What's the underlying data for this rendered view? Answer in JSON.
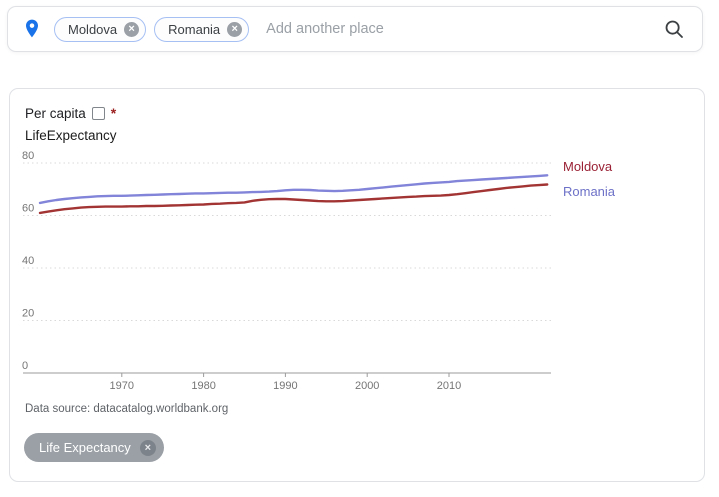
{
  "search_bar": {
    "placeholder": "Add another place",
    "place_chips": [
      {
        "label": "Moldova"
      },
      {
        "label": "Romania"
      }
    ],
    "accent_color": "#1a73e8"
  },
  "panel": {
    "per_capita_label": "Per capita",
    "required_marker": "*",
    "data_source": "Data source: datacatalog.worldbank.org",
    "metric_chip": {
      "label": "Life Expectancy"
    }
  },
  "chart_data": {
    "type": "line",
    "title": "LifeExpectancy",
    "xlabel": "",
    "ylabel": "",
    "ylim": [
      0,
      80
    ],
    "yticks": [
      0,
      20,
      40,
      60,
      80
    ],
    "xticks": [
      1970,
      1980,
      1990,
      2000,
      2010
    ],
    "grid": "horizontal-dotted",
    "legend_position": "right",
    "x": [
      1960,
      1961,
      1962,
      1963,
      1964,
      1965,
      1966,
      1967,
      1968,
      1969,
      1970,
      1971,
      1972,
      1973,
      1974,
      1975,
      1976,
      1977,
      1978,
      1979,
      1980,
      1981,
      1982,
      1983,
      1984,
      1985,
      1986,
      1987,
      1988,
      1989,
      1990,
      1991,
      1992,
      1993,
      1994,
      1995,
      1996,
      1997,
      1998,
      1999,
      2000,
      2001,
      2002,
      2003,
      2004,
      2005,
      2006,
      2007,
      2008,
      2009,
      2010,
      2011,
      2012,
      2013,
      2014,
      2015,
      2016,
      2017,
      2018,
      2019,
      2020,
      2021,
      2022
    ],
    "series": [
      {
        "name": "Moldova",
        "label_color": "#9a2135",
        "line_color": "#a33434",
        "values": [
          61.0,
          61.5,
          62.0,
          62.4,
          62.7,
          63.0,
          63.2,
          63.3,
          63.4,
          63.4,
          63.4,
          63.5,
          63.5,
          63.6,
          63.6,
          63.7,
          63.8,
          63.9,
          64.0,
          64.1,
          64.2,
          64.4,
          64.5,
          64.7,
          64.8,
          65.0,
          65.6,
          66.0,
          66.2,
          66.3,
          66.3,
          66.1,
          65.9,
          65.7,
          65.5,
          65.4,
          65.4,
          65.5,
          65.7,
          65.9,
          66.1,
          66.3,
          66.5,
          66.7,
          66.9,
          67.1,
          67.2,
          67.4,
          67.5,
          67.6,
          67.8,
          68.1,
          68.5,
          68.9,
          69.3,
          69.7,
          70.1,
          70.5,
          70.8,
          71.1,
          71.4,
          71.6,
          71.8
        ]
      },
      {
        "name": "Romania",
        "label_color": "#6d71c7",
        "line_color": "#8184d8",
        "values": [
          64.8,
          65.4,
          65.9,
          66.3,
          66.6,
          66.9,
          67.1,
          67.3,
          67.4,
          67.5,
          67.5,
          67.6,
          67.7,
          67.8,
          67.9,
          68.0,
          68.1,
          68.2,
          68.3,
          68.4,
          68.4,
          68.5,
          68.6,
          68.7,
          68.7,
          68.8,
          68.9,
          69.0,
          69.1,
          69.3,
          69.6,
          69.8,
          69.8,
          69.7,
          69.5,
          69.4,
          69.3,
          69.4,
          69.6,
          69.8,
          70.1,
          70.4,
          70.7,
          71.0,
          71.3,
          71.6,
          71.9,
          72.2,
          72.4,
          72.6,
          72.8,
          73.1,
          73.3,
          73.5,
          73.7,
          73.9,
          74.1,
          74.3,
          74.5,
          74.7,
          74.9,
          75.1,
          75.3
        ]
      }
    ]
  }
}
